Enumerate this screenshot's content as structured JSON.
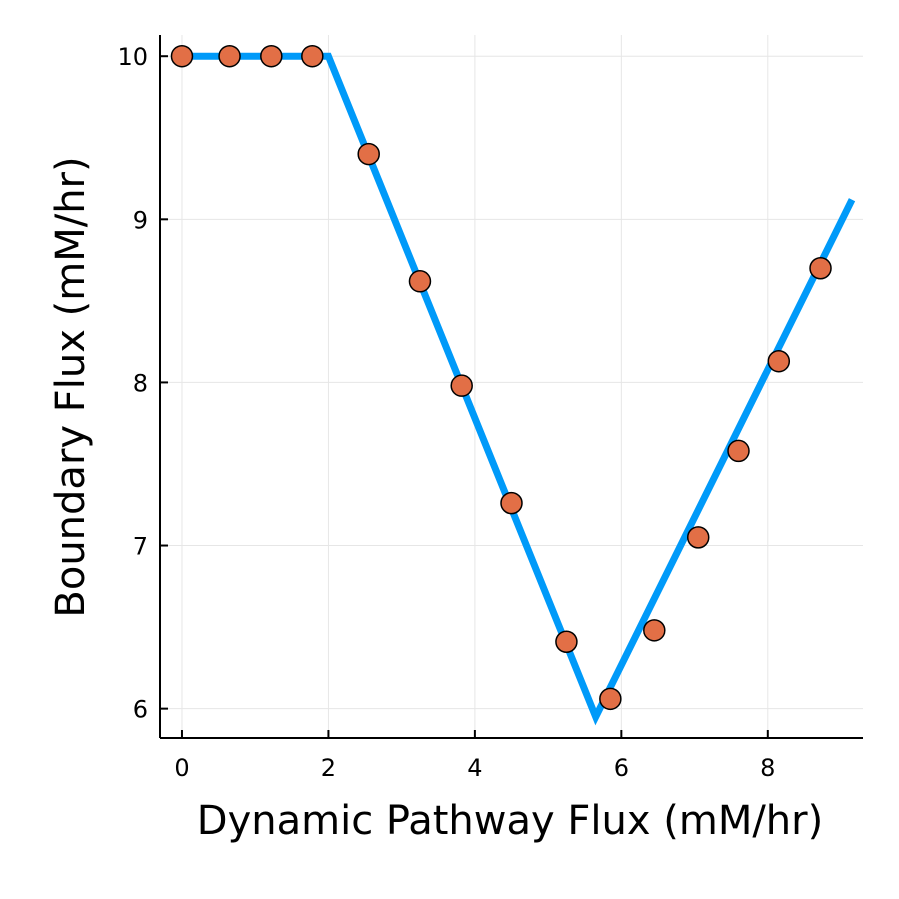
{
  "chart_data": {
    "type": "line",
    "title": "",
    "xlabel": "Dynamic Pathway Flux (mM/hr)",
    "ylabel": "Boundary Flux (mM/hr)",
    "xlim": [
      -0.3,
      9.3
    ],
    "ylim": [
      5.82,
      10.13
    ],
    "xticks": [
      0,
      2,
      4,
      6,
      8
    ],
    "yticks": [
      6,
      7,
      8,
      9,
      10
    ],
    "grid": true,
    "legend": "none",
    "colors": {
      "line": "#009af9",
      "marker": "#e26f46",
      "marker_edge": "#000000"
    },
    "series": [
      {
        "kind": "line",
        "x": [
          0,
          2,
          5.65,
          9.15
        ],
        "y": [
          10,
          10,
          5.95,
          9.12
        ]
      },
      {
        "kind": "scatter",
        "x": [
          0,
          0.65,
          1.22,
          1.78,
          2.55,
          3.25,
          3.82,
          4.5,
          5.25,
          5.85,
          6.45,
          7.05,
          7.6,
          8.15,
          8.72
        ],
        "y": [
          10,
          10,
          10,
          10,
          9.4,
          8.62,
          7.98,
          7.26,
          6.41,
          6.06,
          6.48,
          7.05,
          7.58,
          8.13,
          8.7
        ]
      }
    ]
  }
}
